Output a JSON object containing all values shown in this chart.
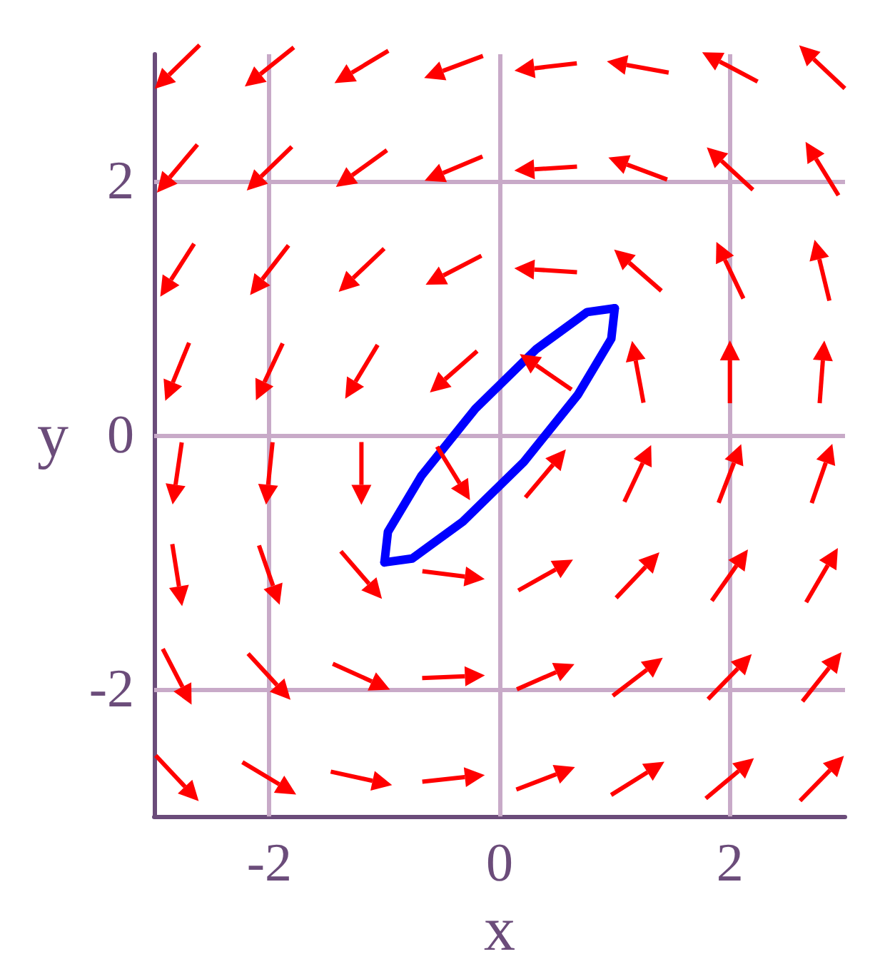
{
  "chart_data": {
    "type": "line",
    "xlabel": "x",
    "ylabel": "y",
    "series": [
      {
        "color": "#0000ff",
        "x": [
          -1,
          -0.97,
          -0.68,
          -0.21,
          0.32,
          0.76,
          1
        ],
        "values": [
          -1,
          -0.76,
          -0.32,
          0.21,
          0.68,
          0.97,
          1
        ]
      },
      {
        "color": "#0000ff",
        "x": [
          -1,
          -0.76,
          -0.32,
          0.21,
          0.68,
          0.97,
          1
        ],
        "values": [
          -1,
          -0.97,
          -0.68,
          -0.21,
          0.32,
          0.76,
          1
        ]
      }
    ],
    "xlim": [
      -3,
      3
    ],
    "ylim": [
      -3,
      3
    ],
    "xticks": [
      -2,
      0,
      2
    ],
    "yticks": [
      -2,
      0,
      2
    ],
    "grid": true,
    "marker": "none",
    "line_style": "solid"
  }
}
